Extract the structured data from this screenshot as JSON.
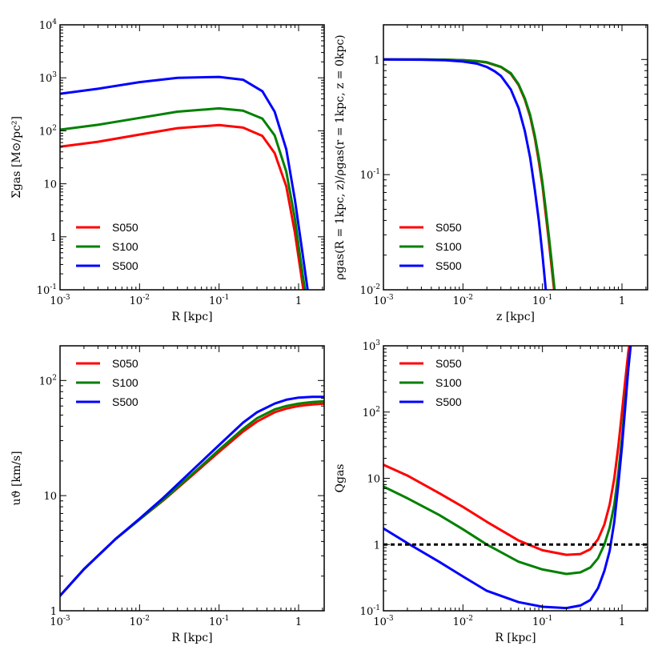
{
  "chart_data": [
    {
      "id": "sigma",
      "type": "line",
      "xscale": "log",
      "yscale": "log",
      "xlim": [
        0.001,
        2.1
      ],
      "ylim": [
        0.1,
        10000
      ],
      "xlabel": "R [kpc]",
      "ylabel": "Σgas [M⊙/pc²]",
      "xticks": [
        {
          "v": 0.001,
          "b": "10",
          "e": "-3"
        },
        {
          "v": 0.01,
          "b": "10",
          "e": "-2"
        },
        {
          "v": 0.1,
          "b": "10",
          "e": "-1"
        },
        {
          "v": 1,
          "b": "1",
          "e": ""
        }
      ],
      "yticks": [
        {
          "v": 0.1,
          "b": "10",
          "e": "-1"
        },
        {
          "v": 1,
          "b": "1",
          "e": ""
        },
        {
          "v": 10,
          "b": "10",
          "e": ""
        },
        {
          "v": 100,
          "b": "10",
          "e": "2"
        },
        {
          "v": 1000,
          "b": "10",
          "e": "3"
        },
        {
          "v": 10000,
          "b": "10",
          "e": "4"
        }
      ],
      "legend": "bottom-left",
      "series": [
        {
          "name": "S050",
          "color": "#ff0000",
          "x": [
            0.001,
            0.003,
            0.01,
            0.03,
            0.1,
            0.2,
            0.35,
            0.5,
            0.7,
            0.9,
            1.05,
            1.15
          ],
          "y": [
            50,
            62,
            85,
            112,
            128,
            115,
            80,
            38,
            9,
            1.2,
            0.25,
            0.1
          ]
        },
        {
          "name": "S100",
          "color": "#008000",
          "x": [
            0.001,
            0.003,
            0.01,
            0.03,
            0.1,
            0.2,
            0.35,
            0.5,
            0.7,
            0.9,
            1.05,
            1.2
          ],
          "y": [
            105,
            130,
            175,
            230,
            265,
            240,
            170,
            82,
            17,
            2.2,
            0.4,
            0.1
          ]
        },
        {
          "name": "S500",
          "color": "#0000ff",
          "x": [
            0.001,
            0.003,
            0.01,
            0.03,
            0.1,
            0.2,
            0.35,
            0.5,
            0.7,
            0.9,
            1.1,
            1.3
          ],
          "y": [
            500,
            620,
            830,
            1000,
            1040,
            920,
            560,
            230,
            45,
            5,
            0.6,
            0.1
          ]
        }
      ]
    },
    {
      "id": "rho",
      "type": "line",
      "xscale": "log",
      "yscale": "log",
      "xlim": [
        0.001,
        2.1
      ],
      "ylim": [
        0.01,
        2.0
      ],
      "xlabel": "z [kpc]",
      "ylabel": "ρgas(R = 1kpc, z)/ρgas(r = 1kpc, z = 0kpc)",
      "xticks": [
        {
          "v": 0.001,
          "b": "10",
          "e": "-3"
        },
        {
          "v": 0.01,
          "b": "10",
          "e": "-2"
        },
        {
          "v": 0.1,
          "b": "10",
          "e": "-1"
        },
        {
          "v": 1,
          "b": "1",
          "e": ""
        }
      ],
      "yticks": [
        {
          "v": 0.01,
          "b": "10",
          "e": "-2"
        },
        {
          "v": 0.1,
          "b": "10",
          "e": "-1"
        },
        {
          "v": 1,
          "b": "1",
          "e": ""
        }
      ],
      "legend": "bottom-left",
      "series": [
        {
          "name": "S050",
          "color": "#ff0000",
          "x": [
            0.001,
            0.003,
            0.006,
            0.01,
            0.015,
            0.02,
            0.03,
            0.04,
            0.05,
            0.06,
            0.07,
            0.08,
            0.09,
            0.1,
            0.11,
            0.12,
            0.13,
            0.14
          ],
          "y": [
            1,
            1,
            0.995,
            0.985,
            0.965,
            0.94,
            0.86,
            0.75,
            0.6,
            0.45,
            0.32,
            0.21,
            0.13,
            0.08,
            0.045,
            0.027,
            0.016,
            0.01
          ]
        },
        {
          "name": "S100",
          "color": "#008000",
          "x": [
            0.001,
            0.003,
            0.006,
            0.01,
            0.015,
            0.02,
            0.03,
            0.04,
            0.05,
            0.06,
            0.07,
            0.08,
            0.09,
            0.1,
            0.11,
            0.12,
            0.13,
            0.142
          ],
          "y": [
            1,
            1,
            0.995,
            0.987,
            0.968,
            0.945,
            0.865,
            0.76,
            0.61,
            0.46,
            0.33,
            0.22,
            0.14,
            0.085,
            0.05,
            0.03,
            0.018,
            0.01
          ]
        },
        {
          "name": "S500",
          "color": "#0000ff",
          "x": [
            0.001,
            0.003,
            0.006,
            0.01,
            0.015,
            0.02,
            0.025,
            0.03,
            0.04,
            0.05,
            0.06,
            0.07,
            0.08,
            0.09,
            0.1,
            0.11
          ],
          "y": [
            1,
            0.995,
            0.985,
            0.96,
            0.92,
            0.86,
            0.79,
            0.72,
            0.55,
            0.38,
            0.24,
            0.14,
            0.075,
            0.04,
            0.02,
            0.01
          ]
        }
      ]
    },
    {
      "id": "velocity",
      "type": "line",
      "xscale": "log",
      "yscale": "log",
      "xlim": [
        0.001,
        2.1
      ],
      "ylim": [
        1,
        200
      ],
      "xlabel": "R [kpc]",
      "ylabel": "uϑ [km/s]",
      "xticks": [
        {
          "v": 0.001,
          "b": "10",
          "e": "-3"
        },
        {
          "v": 0.01,
          "b": "10",
          "e": "-2"
        },
        {
          "v": 0.1,
          "b": "10",
          "e": "-1"
        },
        {
          "v": 1,
          "b": "1",
          "e": ""
        }
      ],
      "yticks": [
        {
          "v": 1,
          "b": "1",
          "e": ""
        },
        {
          "v": 10,
          "b": "10",
          "e": ""
        },
        {
          "v": 100,
          "b": "10",
          "e": "2"
        }
      ],
      "legend": "top-left",
      "series": [
        {
          "name": "S050",
          "color": "#ff0000",
          "x": [
            0.001,
            0.002,
            0.005,
            0.01,
            0.02,
            0.05,
            0.1,
            0.2,
            0.3,
            0.5,
            0.7,
            1,
            1.5,
            2.1
          ],
          "y": [
            1.35,
            2.3,
            4.2,
            6.2,
            9.1,
            15.8,
            24,
            36,
            44,
            53,
            57,
            60,
            62,
            63
          ]
        },
        {
          "name": "S100",
          "color": "#008000",
          "x": [
            0.001,
            0.002,
            0.005,
            0.01,
            0.02,
            0.05,
            0.1,
            0.2,
            0.3,
            0.5,
            0.7,
            1,
            1.5,
            2.1
          ],
          "y": [
            1.35,
            2.3,
            4.2,
            6.2,
            9.2,
            16.2,
            25,
            38,
            47,
            56,
            60,
            63,
            65,
            66
          ]
        },
        {
          "name": "S500",
          "color": "#0000ff",
          "x": [
            0.001,
            0.002,
            0.005,
            0.01,
            0.02,
            0.05,
            0.1,
            0.2,
            0.3,
            0.5,
            0.7,
            1,
            1.5,
            2.1
          ],
          "y": [
            1.35,
            2.3,
            4.2,
            6.3,
            9.6,
            17.5,
            27.5,
            43,
            53,
            63,
            68,
            71,
            72,
            72
          ]
        }
      ]
    },
    {
      "id": "toomre",
      "type": "line",
      "xscale": "log",
      "yscale": "log",
      "xlim": [
        0.001,
        2.1
      ],
      "ylim": [
        0.1,
        1000
      ],
      "xlabel": "R [kpc]",
      "ylabel": "Qgas",
      "xticks": [
        {
          "v": 0.001,
          "b": "10",
          "e": "-3"
        },
        {
          "v": 0.01,
          "b": "10",
          "e": "-2"
        },
        {
          "v": 0.1,
          "b": "10",
          "e": "-1"
        },
        {
          "v": 1,
          "b": "1",
          "e": ""
        }
      ],
      "yticks": [
        {
          "v": 0.1,
          "b": "10",
          "e": "-1"
        },
        {
          "v": 1,
          "b": "1",
          "e": ""
        },
        {
          "v": 10,
          "b": "10",
          "e": ""
        },
        {
          "v": 100,
          "b": "10",
          "e": "2"
        },
        {
          "v": 1000,
          "b": "10",
          "e": "3"
        }
      ],
      "legend": "top-left",
      "reference_line": {
        "y": 1,
        "style": "dashed",
        "color": "#000000"
      },
      "series": [
        {
          "name": "S050",
          "color": "#ff0000",
          "x": [
            0.001,
            0.002,
            0.005,
            0.01,
            0.02,
            0.05,
            0.1,
            0.2,
            0.3,
            0.4,
            0.5,
            0.6,
            0.7,
            0.8,
            0.9,
            1,
            1.1,
            1.2,
            1.3
          ],
          "y": [
            16,
            11,
            6,
            3.7,
            2.2,
            1.15,
            0.82,
            0.7,
            0.72,
            0.85,
            1.2,
            2,
            4,
            10,
            30,
            100,
            300,
            800,
            1500
          ]
        },
        {
          "name": "S100",
          "color": "#008000",
          "x": [
            0.001,
            0.002,
            0.005,
            0.01,
            0.02,
            0.05,
            0.1,
            0.2,
            0.3,
            0.4,
            0.5,
            0.6,
            0.7,
            0.8,
            0.9,
            1,
            1.1,
            1.2,
            1.3
          ],
          "y": [
            7.5,
            5,
            2.8,
            1.7,
            1,
            0.55,
            0.42,
            0.36,
            0.38,
            0.45,
            0.62,
            1,
            1.8,
            4,
            12,
            40,
            150,
            450,
            1100
          ]
        },
        {
          "name": "S500",
          "color": "#0000ff",
          "x": [
            0.001,
            0.002,
            0.005,
            0.01,
            0.02,
            0.05,
            0.1,
            0.2,
            0.3,
            0.4,
            0.5,
            0.6,
            0.7,
            0.8,
            0.9,
            1,
            1.1,
            1.2,
            1.3
          ],
          "y": [
            1.75,
            1.05,
            0.55,
            0.33,
            0.2,
            0.135,
            0.115,
            0.11,
            0.12,
            0.145,
            0.22,
            0.4,
            0.8,
            2.2,
            8,
            30,
            120,
            450,
            1200
          ]
        }
      ]
    }
  ]
}
